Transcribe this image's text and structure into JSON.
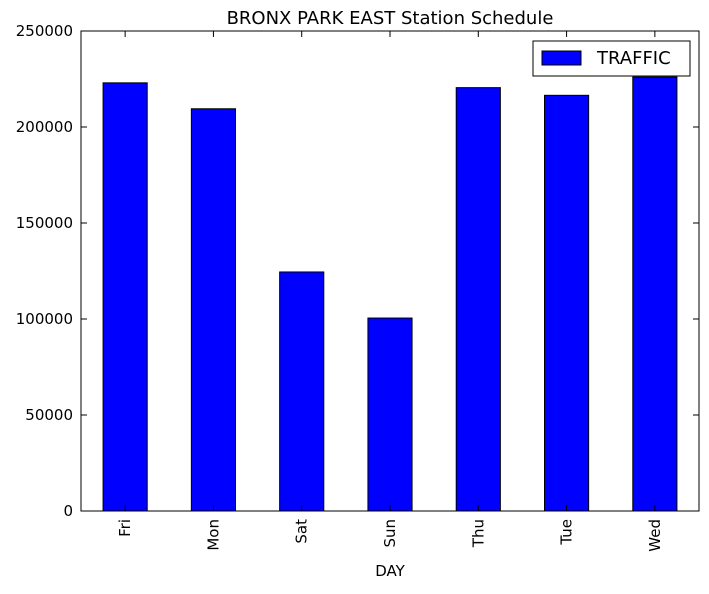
{
  "chart_data": {
    "type": "bar",
    "title": "BRONX PARK EAST Station Schedule",
    "xlabel": "DAY",
    "ylabel": "",
    "categories": [
      "Fri",
      "Mon",
      "Sat",
      "Sun",
      "Thu",
      "Tue",
      "Wed"
    ],
    "series": [
      {
        "name": "TRAFFIC",
        "values": [
          223000,
          209500,
          124500,
          100500,
          220500,
          216500,
          226000
        ],
        "color": "#0000ff"
      }
    ],
    "ylim": [
      0,
      250000
    ],
    "yticks": [
      0,
      50000,
      100000,
      150000,
      200000,
      250000
    ],
    "ytick_labels": [
      "0",
      "50000",
      "100000",
      "150000",
      "200000",
      "250000"
    ],
    "grid": false,
    "legend_position": "top-right",
    "bar_edge_color": "#000000"
  }
}
